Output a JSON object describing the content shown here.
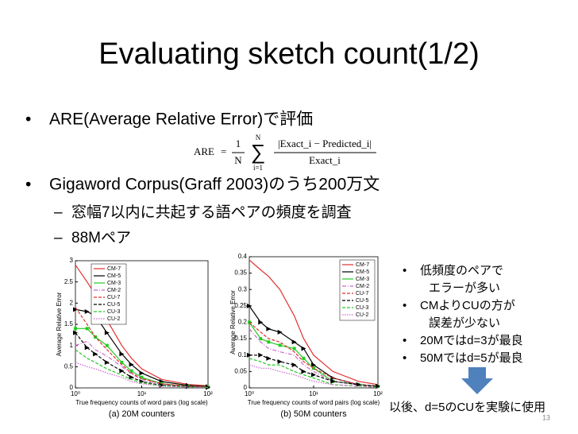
{
  "title": "Evaluating sketch count(1/2)",
  "bullets": [
    {
      "text": "ARE(Average Relative Error)で評価"
    },
    {
      "text": "Gigaword Corpus(Graff 2003)のうち200万文",
      "sub": [
        "窓幅7以内に共起する語ペアの頻度を調査",
        "88Mペア"
      ]
    }
  ],
  "formula": {
    "lhs": "ARE",
    "one": "1",
    "n": "N",
    "sum_top": "N",
    "sum_bottom": "i=1",
    "numerator": "|Exact_i − Predicted_i|",
    "denominator": "Exact_i"
  },
  "chart_data": [
    {
      "type": "line",
      "caption": "(a) 20M counters",
      "xlabel": "True frequency counts of word pairs (log scale)",
      "ylabel": "Average Relative Error",
      "xscale": "log",
      "xlim": [
        1,
        100
      ],
      "xticks": [
        {
          "value": 1,
          "label": "10⁰"
        },
        {
          "value": 10,
          "label": "10¹"
        },
        {
          "value": 100,
          "label": "10²"
        }
      ],
      "ylim": [
        0,
        3
      ],
      "yticks": [
        0,
        0.5,
        1,
        1.5,
        2,
        2.5,
        3
      ],
      "x": [
        1,
        1.5,
        2,
        3,
        5,
        7,
        10,
        20,
        50,
        100
      ],
      "series": [
        {
          "name": "CM-7",
          "color": "#e03030",
          "dash": "solid",
          "values": [
            2.9,
            2.5,
            2.2,
            1.6,
            1.0,
            0.7,
            0.45,
            0.2,
            0.08,
            0.05
          ]
        },
        {
          "name": "CM-5",
          "color": "#000000",
          "dash": "solid",
          "marker": "triangle",
          "values": [
            1.85,
            1.8,
            1.7,
            1.3,
            0.8,
            0.55,
            0.35,
            0.15,
            0.06,
            0.03
          ]
        },
        {
          "name": "CM-3",
          "color": "#22cc22",
          "dash": "solid",
          "marker": "square",
          "values": [
            1.4,
            1.4,
            1.2,
            1.0,
            0.6,
            0.4,
            0.25,
            0.1,
            0.04,
            0.02
          ]
        },
        {
          "name": "CM-2",
          "color": "#cc66cc",
          "dash": "dashdot",
          "values": [
            1.0,
            1.1,
            0.9,
            0.75,
            0.5,
            0.33,
            0.2,
            0.08,
            0.03,
            0.02
          ]
        },
        {
          "name": "CU-7",
          "color": "#e03030",
          "dash": "dashed",
          "values": [
            1.9,
            1.5,
            1.2,
            0.9,
            0.55,
            0.35,
            0.22,
            0.1,
            0.04,
            0.02
          ]
        },
        {
          "name": "CU-5",
          "color": "#000000",
          "dash": "dashed",
          "marker": "triangle",
          "values": [
            1.3,
            0.95,
            0.8,
            0.6,
            0.4,
            0.25,
            0.15,
            0.06,
            0.03,
            0.01
          ]
        },
        {
          "name": "CU-3",
          "color": "#22cc22",
          "dash": "dashed",
          "values": [
            0.9,
            0.7,
            0.6,
            0.45,
            0.3,
            0.2,
            0.12,
            0.05,
            0.02,
            0.01
          ]
        },
        {
          "name": "CU-2",
          "color": "#cc66cc",
          "dash": "dotted",
          "values": [
            0.6,
            0.5,
            0.45,
            0.35,
            0.25,
            0.15,
            0.1,
            0.04,
            0.02,
            0.01
          ]
        }
      ],
      "legend": "upper-left"
    },
    {
      "type": "line",
      "caption": "(b) 50M counters",
      "xlabel": "True frequency counts of word pairs (log scale)",
      "ylabel": "Average Relative Error",
      "xscale": "log",
      "xlim": [
        1,
        100
      ],
      "xticks": [
        {
          "value": 1,
          "label": "10⁰"
        },
        {
          "value": 10,
          "label": "10¹"
        },
        {
          "value": 100,
          "label": "10²"
        }
      ],
      "ylim": [
        0,
        0.4
      ],
      "yticks": [
        0,
        0.05,
        0.1,
        0.15,
        0.2,
        0.25,
        0.3,
        0.35,
        0.4
      ],
      "x": [
        1,
        1.5,
        2,
        3,
        5,
        7,
        10,
        20,
        50,
        100
      ],
      "series": [
        {
          "name": "CM-7",
          "color": "#e03030",
          "dash": "solid",
          "values": [
            0.39,
            0.36,
            0.34,
            0.3,
            0.22,
            0.15,
            0.1,
            0.05,
            0.02,
            0.01
          ]
        },
        {
          "name": "CM-5",
          "color": "#000000",
          "dash": "solid",
          "marker": "triangle",
          "values": [
            0.25,
            0.2,
            0.18,
            0.17,
            0.14,
            0.12,
            0.07,
            0.03,
            0.01,
            0.005
          ]
        },
        {
          "name": "CM-3",
          "color": "#22cc22",
          "dash": "solid",
          "marker": "square",
          "values": [
            0.2,
            0.15,
            0.14,
            0.13,
            0.12,
            0.09,
            0.06,
            0.02,
            0.01,
            0.005
          ]
        },
        {
          "name": "CM-2",
          "color": "#cc66cc",
          "dash": "dashdot",
          "values": [
            0.18,
            0.14,
            0.12,
            0.11,
            0.1,
            0.07,
            0.05,
            0.02,
            0.01,
            0.005
          ]
        },
        {
          "name": "CU-7",
          "color": "#e03030",
          "dash": "dashed",
          "values": [
            0.2,
            0.17,
            0.15,
            0.14,
            0.11,
            0.08,
            0.06,
            0.03,
            0.01,
            0.005
          ]
        },
        {
          "name": "CU-5",
          "color": "#000000",
          "dash": "dashed",
          "marker": "triangle",
          "values": [
            0.1,
            0.1,
            0.09,
            0.08,
            0.07,
            0.05,
            0.04,
            0.02,
            0.01,
            0.005
          ]
        },
        {
          "name": "CU-3",
          "color": "#22cc22",
          "dash": "dashed",
          "values": [
            0.09,
            0.08,
            0.07,
            0.07,
            0.05,
            0.04,
            0.03,
            0.01,
            0.005,
            0.002
          ]
        },
        {
          "name": "CU-2",
          "color": "#cc66cc",
          "dash": "dotted",
          "values": [
            0.07,
            0.06,
            0.06,
            0.05,
            0.04,
            0.03,
            0.02,
            0.01,
            0.005,
            0.002
          ]
        }
      ],
      "legend": "upper-right"
    }
  ],
  "notes": [
    [
      "低頻度のペアで",
      "エラーが多い"
    ],
    [
      "CMよりCUの方が",
      "誤差が少ない"
    ],
    [
      "20Mではd=3が最良"
    ],
    [
      "50Mではd=5が最良"
    ]
  ],
  "conclusion": "以後、d=5のCUを実験に使用",
  "page_number": "13"
}
